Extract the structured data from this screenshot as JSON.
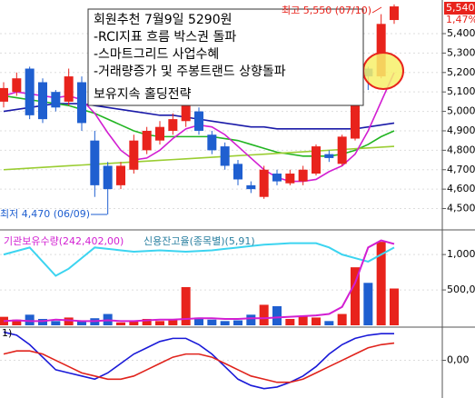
{
  "chart_data": [
    {
      "type": "candlestick",
      "annotation_box": [
        "회원추천 7월9일 5290원",
        "-RCI지표 흐름 박스권 돌파",
        "-스마트그리드 사업수혜",
        "-거래량증가 및 주봉트랜드 상향돌파",
        "보유지속 홀딩전략"
      ],
      "high_label": "최고 5,550 (07/10)",
      "low_label": "최저 4,470 (06/09)",
      "price_label": "5,540",
      "change_label": "1,47%",
      "ylim": [
        4395,
        5573
      ],
      "yticks": [
        {
          "value": 5400,
          "label": "5,400"
        },
        {
          "value": 5300,
          "label": "5,300"
        },
        {
          "value": 5200,
          "label": "5,200"
        },
        {
          "value": 5100,
          "label": "5,100"
        },
        {
          "value": 5000,
          "label": "5,000"
        },
        {
          "value": 4900,
          "label": "4,900"
        },
        {
          "value": 4800,
          "label": "4,800"
        },
        {
          "value": 4700,
          "label": "4,700"
        },
        {
          "value": 4600,
          "label": "4,600"
        },
        {
          "value": 4500,
          "label": "4,500"
        }
      ],
      "up_color": "#e8231c",
      "down_color": "#1f5fd0",
      "open": [
        5050,
        5100,
        5220,
        5150,
        5100,
        5050,
        5150,
        4850,
        4720,
        4620,
        4700,
        4800,
        4850,
        4900,
        4950,
        5000,
        4880,
        4820,
        4730,
        4620,
        4560,
        4680,
        4630,
        4640,
        4680,
        4780,
        4730,
        4860,
        5220,
        5180,
        5470
      ],
      "high": [
        5150,
        5200,
        5230,
        5170,
        5110,
        5220,
        5180,
        4900,
        4740,
        4740,
        4880,
        4920,
        4950,
        4990,
        5150,
        5020,
        4900,
        4840,
        4750,
        4640,
        4720,
        4700,
        4700,
        4720,
        4830,
        4800,
        4880,
        5080,
        5230,
        5500,
        5550
      ],
      "low": [
        5020,
        5080,
        4960,
        4940,
        5000,
        5030,
        4900,
        4560,
        4470,
        4600,
        4680,
        4780,
        4830,
        4880,
        4920,
        4880,
        4780,
        4700,
        4620,
        4580,
        4550,
        4620,
        4620,
        4620,
        4670,
        4740,
        4720,
        4850,
        5110,
        5170,
        5450
      ],
      "close": [
        5120,
        5170,
        4980,
        4960,
        5020,
        5180,
        4940,
        4620,
        4600,
        4720,
        4850,
        4900,
        4920,
        4960,
        5030,
        4900,
        4800,
        4720,
        4650,
        4600,
        4700,
        4640,
        4680,
        4700,
        4820,
        4760,
        4870,
        5060,
        5180,
        5450,
        5540
      ],
      "lines": [
        {
          "color": "#1a1aa8",
          "values": [
            5000,
            5010,
            5020,
            5030,
            5040,
            5040,
            5040,
            5030,
            5020,
            5010,
            5000,
            4990,
            4980,
            4980,
            4970,
            4960,
            4950,
            4940,
            4930,
            4920,
            4920,
            4910,
            4910,
            4910,
            4910,
            4910,
            4910,
            4910,
            4920,
            4930,
            4940
          ]
        },
        {
          "color": "#22b522",
          "values": [
            5080,
            5070,
            5060,
            5050,
            5040,
            5030,
            5010,
            4990,
            4960,
            4930,
            4900,
            4880,
            4870,
            4870,
            4870,
            4870,
            4870,
            4860,
            4850,
            4830,
            4810,
            4790,
            4780,
            4770,
            4770,
            4770,
            4780,
            4800,
            4830,
            4870,
            4900
          ]
        },
        {
          "color": "#9acd32",
          "values": [
            4700,
            4704,
            4708,
            4712,
            4716,
            4720,
            4724,
            4728,
            4732,
            4736,
            4740,
            4744,
            4748,
            4752,
            4756,
            4760,
            4764,
            4768,
            4772,
            4776,
            4780,
            4784,
            4788,
            4792,
            4796,
            4800,
            4804,
            4808,
            4812,
            4816,
            4820
          ]
        },
        {
          "color": "#d21fd2",
          "values": [
            5080,
            5100,
            5090,
            5080,
            5070,
            5080,
            5060,
            4990,
            4890,
            4800,
            4750,
            4760,
            4800,
            4860,
            4910,
            4930,
            4920,
            4880,
            4820,
            4760,
            4700,
            4660,
            4640,
            4640,
            4650,
            4690,
            4720,
            4780,
            4900,
            5050,
            5200
          ]
        }
      ]
    },
    {
      "type": "bar",
      "legend": [
        "기관보유수량(242,402,00)",
        "신용잔고율(종목별)(5,91)"
      ],
      "ylim": [
        0,
        1310
      ],
      "yticks": [
        {
          "value": 1000,
          "label": "1,000,"
        },
        {
          "value": 500,
          "label": "500,00"
        }
      ],
      "values": [
        120,
        80,
        150,
        90,
        60,
        110,
        70,
        100,
        160,
        40,
        70,
        90,
        60,
        90,
        540,
        110,
        80,
        60,
        70,
        150,
        290,
        270,
        90,
        130,
        110,
        60,
        160,
        820,
        600,
        1180,
        520
      ],
      "lines": [
        {
          "color": "#3cd4f0",
          "values": [
            1000,
            1050,
            1100,
            900,
            700,
            800,
            950,
            1100,
            1080,
            1060,
            1040,
            1050,
            1060,
            1050,
            1040,
            1050,
            1060,
            1080,
            1100,
            1120,
            1140,
            1150,
            1160,
            1160,
            1160,
            1100,
            1000,
            950,
            900,
            1000,
            1100
          ]
        },
        {
          "color": "#d21fd2",
          "values": [
            60,
            70,
            60,
            60,
            80,
            70,
            60,
            60,
            70,
            60,
            60,
            70,
            80,
            80,
            90,
            100,
            100,
            90,
            90,
            100,
            100,
            110,
            120,
            130,
            140,
            160,
            260,
            600,
            1100,
            1200,
            1150
          ]
        }
      ]
    },
    {
      "type": "line",
      "label": "1)",
      "ylim": [
        -1.2,
        1
      ],
      "yticks": [
        {
          "value": 0,
          "label": "0,00"
        }
      ],
      "lines": [
        {
          "color": "#1a1ad8",
          "values": [
            0.9,
            0.8,
            0.5,
            0.1,
            -0.3,
            -0.4,
            -0.5,
            -0.6,
            -0.4,
            -0.1,
            0.2,
            0.4,
            0.6,
            0.7,
            0.7,
            0.5,
            0.2,
            -0.2,
            -0.6,
            -0.8,
            -0.9,
            -0.85,
            -0.7,
            -0.5,
            -0.2,
            0.2,
            0.5,
            0.7,
            0.8,
            0.85,
            0.85
          ]
        },
        {
          "color": "#e0231c",
          "values": [
            0.2,
            0.3,
            0.3,
            0.2,
            0,
            -0.2,
            -0.4,
            -0.5,
            -0.6,
            -0.6,
            -0.5,
            -0.3,
            -0.1,
            0.1,
            0.2,
            0.2,
            0.1,
            -0.1,
            -0.3,
            -0.5,
            -0.6,
            -0.7,
            -0.7,
            -0.6,
            -0.4,
            -0.2,
            0,
            0.2,
            0.4,
            0.5,
            0.55
          ]
        }
      ]
    }
  ]
}
